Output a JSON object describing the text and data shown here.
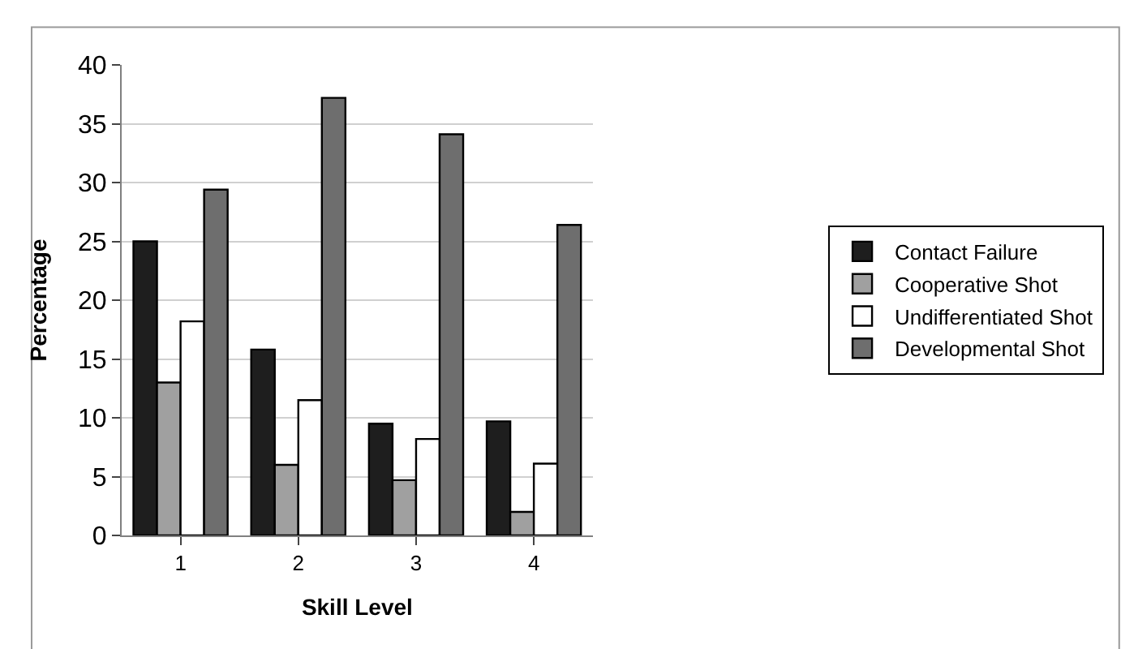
{
  "chart_data": {
    "type": "bar",
    "xlabel": "Skill Level",
    "ylabel": "Percentage",
    "categories": [
      "1",
      "2",
      "3",
      "4"
    ],
    "series": [
      {
        "name": "Contact Failure",
        "color": "#1e1e1e",
        "values": [
          25.0,
          15.8,
          9.5,
          9.7
        ]
      },
      {
        "name": "Cooperative Shot",
        "color": "#a0a0a0",
        "values": [
          13.0,
          6.0,
          4.7,
          2.0
        ]
      },
      {
        "name": "Undifferentiated Shot",
        "color": "#ffffff",
        "values": [
          18.2,
          11.5,
          8.2,
          6.1
        ]
      },
      {
        "name": "Developmental Shot",
        "color": "#6e6e6e",
        "values": [
          29.4,
          37.2,
          34.1,
          26.4
        ]
      }
    ],
    "ylim": [
      0,
      40
    ],
    "yticks": [
      0,
      5,
      10,
      15,
      20,
      25,
      30,
      35,
      40
    ],
    "grid": "y",
    "legend": "right"
  }
}
